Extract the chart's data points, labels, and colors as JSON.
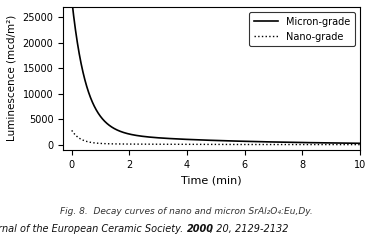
{
  "title": "",
  "xlabel": "Time (min)",
  "ylabel": "Luminescence (mcd/m²)",
  "xlim": [
    -0.3,
    10
  ],
  "ylim": [
    -1000,
    27000
  ],
  "yticks": [
    0,
    5000,
    10000,
    15000,
    20000,
    25000
  ],
  "xticks": [
    0,
    2,
    4,
    6,
    8,
    10
  ],
  "micron_label": "Micron-grade",
  "nano_label": "Nano-grade",
  "micron_color": "#000000",
  "nano_color": "#000000",
  "fig_caption": "Fig. 8.  Decay curves of nano and micron SrAl₂O₄:Eu,Dy.",
  "journal_part1": "Journal of the European Ceramic Society. ",
  "journal_bold": "2000",
  "journal_part2": ", 20, 2129-2132",
  "background_color": "#ffffff",
  "micron_A1": 26000,
  "micron_tau1": 0.5,
  "micron_A2": 2500,
  "micron_tau2": 4.5,
  "nano_A1": 2600,
  "nano_tau1": 0.3,
  "nano_A2": 200,
  "nano_tau2": 3.5
}
